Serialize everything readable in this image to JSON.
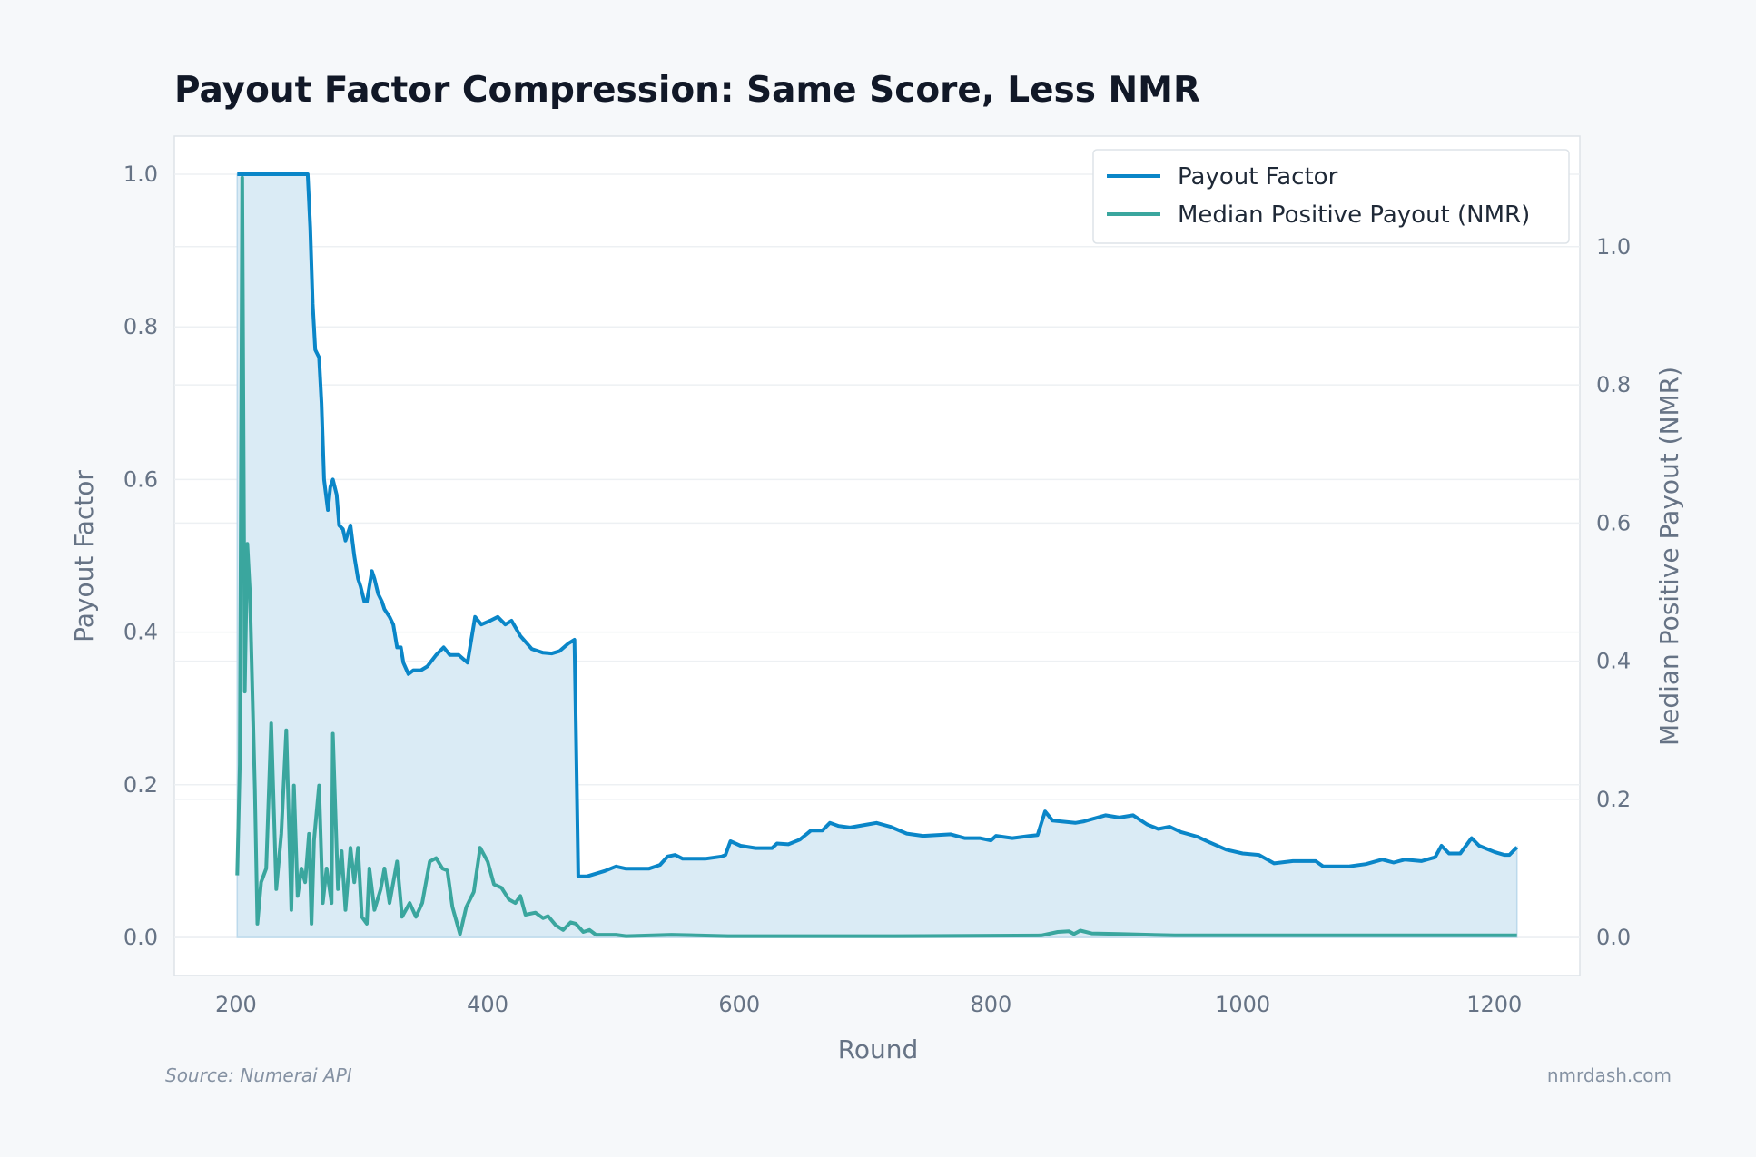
{
  "chart_data": {
    "type": "line",
    "title": "Payout Factor Compression: Same Score, Less NMR",
    "xlabel": "Round",
    "ylabel": "Payout Factor",
    "y2label": "Median Positive Payout (NMR)",
    "xlim": [
      151,
      1268
    ],
    "ylim": [
      -0.05,
      1.05
    ],
    "y2lim": [
      -0.055,
      1.16
    ],
    "xticks": [
      200,
      400,
      600,
      800,
      1000,
      1200
    ],
    "yticks": [
      "0.0",
      "0.2",
      "0.4",
      "0.6",
      "0.8",
      "1.0"
    ],
    "y2ticks": [
      "0.0",
      "0.2",
      "0.4",
      "0.6",
      "0.8",
      "1.0"
    ],
    "grid": true,
    "legend_position": "top-right",
    "colors": {
      "payout_factor": "#0a86c8",
      "median_payout": "#3aa69e",
      "fill": "#daebf5",
      "fill_edge": "#bcd9ec"
    },
    "series": [
      {
        "name": "Payout Factor",
        "axis": "left",
        "filled": true,
        "points": [
          [
            201,
            1.0
          ],
          [
            257,
            1.0
          ],
          [
            259,
            0.93
          ],
          [
            261,
            0.83
          ],
          [
            263,
            0.77
          ],
          [
            266,
            0.76
          ],
          [
            268,
            0.7
          ],
          [
            270,
            0.6
          ],
          [
            273,
            0.56
          ],
          [
            275,
            0.59
          ],
          [
            277,
            0.6
          ],
          [
            280,
            0.58
          ],
          [
            282,
            0.54
          ],
          [
            285,
            0.535
          ],
          [
            287,
            0.52
          ],
          [
            291,
            0.54
          ],
          [
            294,
            0.5
          ],
          [
            297,
            0.47
          ],
          [
            299,
            0.46
          ],
          [
            302,
            0.44
          ],
          [
            304,
            0.44
          ],
          [
            308,
            0.48
          ],
          [
            310,
            0.47
          ],
          [
            313,
            0.45
          ],
          [
            316,
            0.44
          ],
          [
            318,
            0.43
          ],
          [
            322,
            0.42
          ],
          [
            325,
            0.41
          ],
          [
            328,
            0.38
          ],
          [
            331,
            0.38
          ],
          [
            333,
            0.36
          ],
          [
            337,
            0.345
          ],
          [
            341,
            0.35
          ],
          [
            347,
            0.35
          ],
          [
            352,
            0.355
          ],
          [
            359,
            0.37
          ],
          [
            365,
            0.38
          ],
          [
            370,
            0.37
          ],
          [
            377,
            0.37
          ],
          [
            384,
            0.36
          ],
          [
            390,
            0.42
          ],
          [
            395,
            0.41
          ],
          [
            402,
            0.415
          ],
          [
            408,
            0.42
          ],
          [
            414,
            0.41
          ],
          [
            419,
            0.415
          ],
          [
            426,
            0.395
          ],
          [
            435,
            0.378
          ],
          [
            444,
            0.373
          ],
          [
            451,
            0.372
          ],
          [
            457,
            0.375
          ],
          [
            464,
            0.385
          ],
          [
            469,
            0.39
          ],
          [
            472,
            0.08
          ],
          [
            479,
            0.08
          ],
          [
            493,
            0.087
          ],
          [
            502,
            0.093
          ],
          [
            510,
            0.09
          ],
          [
            528,
            0.09
          ],
          [
            537,
            0.095
          ],
          [
            543,
            0.106
          ],
          [
            549,
            0.108
          ],
          [
            555,
            0.103
          ],
          [
            573,
            0.103
          ],
          [
            586,
            0.106
          ],
          [
            589,
            0.108
          ],
          [
            593,
            0.126
          ],
          [
            601,
            0.12
          ],
          [
            613,
            0.117
          ],
          [
            626,
            0.117
          ],
          [
            630,
            0.123
          ],
          [
            639,
            0.122
          ],
          [
            648,
            0.128
          ],
          [
            657,
            0.14
          ],
          [
            666,
            0.14
          ],
          [
            672,
            0.15
          ],
          [
            679,
            0.146
          ],
          [
            688,
            0.144
          ],
          [
            702,
            0.148
          ],
          [
            709,
            0.15
          ],
          [
            720,
            0.145
          ],
          [
            733,
            0.136
          ],
          [
            746,
            0.133
          ],
          [
            768,
            0.135
          ],
          [
            779,
            0.13
          ],
          [
            791,
            0.13
          ],
          [
            800,
            0.127
          ],
          [
            804,
            0.133
          ],
          [
            817,
            0.13
          ],
          [
            831,
            0.133
          ],
          [
            837,
            0.134
          ],
          [
            843,
            0.165
          ],
          [
            849,
            0.153
          ],
          [
            867,
            0.15
          ],
          [
            874,
            0.152
          ],
          [
            891,
            0.16
          ],
          [
            902,
            0.157
          ],
          [
            913,
            0.16
          ],
          [
            924,
            0.148
          ],
          [
            933,
            0.142
          ],
          [
            942,
            0.145
          ],
          [
            951,
            0.138
          ],
          [
            964,
            0.132
          ],
          [
            973,
            0.125
          ],
          [
            987,
            0.115
          ],
          [
            1000,
            0.11
          ],
          [
            1013,
            0.108
          ],
          [
            1025,
            0.097
          ],
          [
            1040,
            0.1
          ],
          [
            1058,
            0.1
          ],
          [
            1064,
            0.093
          ],
          [
            1084,
            0.093
          ],
          [
            1098,
            0.096
          ],
          [
            1111,
            0.102
          ],
          [
            1120,
            0.098
          ],
          [
            1129,
            0.102
          ],
          [
            1142,
            0.1
          ],
          [
            1153,
            0.105
          ],
          [
            1158,
            0.12
          ],
          [
            1164,
            0.11
          ],
          [
            1173,
            0.11
          ],
          [
            1182,
            0.13
          ],
          [
            1188,
            0.12
          ],
          [
            1200,
            0.112
          ],
          [
            1208,
            0.108
          ],
          [
            1212,
            0.108
          ],
          [
            1218,
            0.118
          ]
        ]
      },
      {
        "name": "Median Positive Payout (NMR)",
        "axis": "right",
        "filled": false,
        "points": [
          [
            201,
            0.09
          ],
          [
            203,
            0.25
          ],
          [
            205,
            1.1
          ],
          [
            207,
            0.356
          ],
          [
            209,
            0.57
          ],
          [
            211,
            0.5
          ],
          [
            215,
            0.215
          ],
          [
            217,
            0.02
          ],
          [
            220,
            0.08
          ],
          [
            224,
            0.1
          ],
          [
            228,
            0.31
          ],
          [
            232,
            0.07
          ],
          [
            236,
            0.15
          ],
          [
            240,
            0.3
          ],
          [
            244,
            0.04
          ],
          [
            246,
            0.22
          ],
          [
            249,
            0.06
          ],
          [
            252,
            0.1
          ],
          [
            255,
            0.08
          ],
          [
            258,
            0.15
          ],
          [
            260,
            0.02
          ],
          [
            262,
            0.14
          ],
          [
            266,
            0.22
          ],
          [
            269,
            0.05
          ],
          [
            272,
            0.1
          ],
          [
            276,
            0.05
          ],
          [
            277,
            0.295
          ],
          [
            281,
            0.07
          ],
          [
            284,
            0.125
          ],
          [
            287,
            0.04
          ],
          [
            291,
            0.13
          ],
          [
            294,
            0.08
          ],
          [
            297,
            0.13
          ],
          [
            300,
            0.03
          ],
          [
            304,
            0.02
          ],
          [
            306,
            0.1
          ],
          [
            310,
            0.04
          ],
          [
            315,
            0.07
          ],
          [
            318,
            0.1
          ],
          [
            322,
            0.05
          ],
          [
            328,
            0.11
          ],
          [
            332,
            0.03
          ],
          [
            338,
            0.05
          ],
          [
            343,
            0.03
          ],
          [
            348,
            0.05
          ],
          [
            354,
            0.11
          ],
          [
            359,
            0.115
          ],
          [
            364,
            0.1
          ],
          [
            368,
            0.097
          ],
          [
            372,
            0.044
          ],
          [
            378,
            0.005
          ],
          [
            383,
            0.044
          ],
          [
            389,
            0.066
          ],
          [
            394,
            0.13
          ],
          [
            400,
            0.11
          ],
          [
            405,
            0.077
          ],
          [
            411,
            0.072
          ],
          [
            417,
            0.055
          ],
          [
            422,
            0.05
          ],
          [
            426,
            0.06
          ],
          [
            430,
            0.033
          ],
          [
            438,
            0.036
          ],
          [
            444,
            0.028
          ],
          [
            448,
            0.031
          ],
          [
            454,
            0.018
          ],
          [
            460,
            0.011
          ],
          [
            466,
            0.022
          ],
          [
            470,
            0.02
          ],
          [
            476,
            0.008
          ],
          [
            481,
            0.011
          ],
          [
            486,
            0.004
          ],
          [
            502,
            0.004
          ],
          [
            510,
            0.002
          ],
          [
            546,
            0.004
          ],
          [
            591,
            0.002
          ],
          [
            724,
            0.002
          ],
          [
            840,
            0.003
          ],
          [
            853,
            0.008
          ],
          [
            862,
            0.009
          ],
          [
            866,
            0.005
          ],
          [
            871,
            0.01
          ],
          [
            880,
            0.006
          ],
          [
            902,
            0.005
          ],
          [
            946,
            0.003
          ],
          [
            1080,
            0.003
          ],
          [
            1218,
            0.003
          ]
        ]
      }
    ]
  },
  "footer": {
    "source": "Source: Numerai API",
    "site": "nmrdash.com"
  }
}
